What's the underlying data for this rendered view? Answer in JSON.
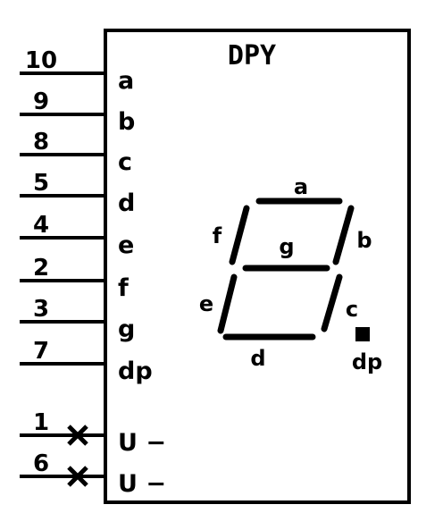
{
  "component": {
    "title": "DPY",
    "colors": {
      "ink": "#000000",
      "paper": "#ffffff"
    }
  },
  "pins": [
    {
      "number": "10",
      "label": "a",
      "no_connect": false
    },
    {
      "number": "9",
      "label": "b",
      "no_connect": false
    },
    {
      "number": "8",
      "label": "c",
      "no_connect": false
    },
    {
      "number": "5",
      "label": "d",
      "no_connect": false
    },
    {
      "number": "4",
      "label": "e",
      "no_connect": false
    },
    {
      "number": "2",
      "label": "f",
      "no_connect": false
    },
    {
      "number": "3",
      "label": "g",
      "no_connect": false
    },
    {
      "number": "7",
      "label": "dp",
      "no_connect": false
    },
    {
      "number": "1",
      "label": "U −",
      "no_connect": true
    },
    {
      "number": "6",
      "label": "U −",
      "no_connect": true
    }
  ],
  "segments": [
    {
      "id": "a",
      "label": "a"
    },
    {
      "id": "b",
      "label": "b"
    },
    {
      "id": "c",
      "label": "c"
    },
    {
      "id": "d",
      "label": "d"
    },
    {
      "id": "e",
      "label": "e"
    },
    {
      "id": "f",
      "label": "f"
    },
    {
      "id": "g",
      "label": "g"
    },
    {
      "id": "dp",
      "label": "dp"
    }
  ]
}
